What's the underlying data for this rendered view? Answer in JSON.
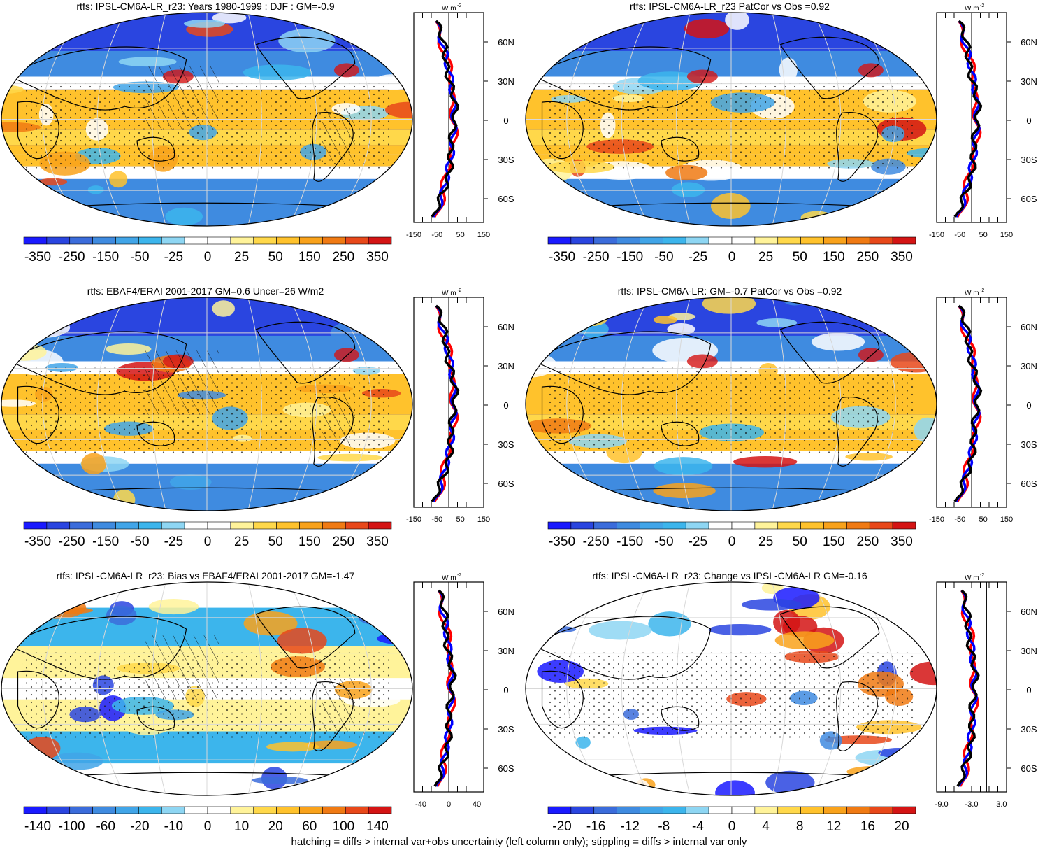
{
  "footnote": "hatching = diffs > internal var+obs uncertainty (left column only); stippling = diffs > internal var only",
  "colors": {
    "cold": [
      "#1a1aff",
      "#2a45e0",
      "#3b6cdb",
      "#3f8be0",
      "#41a5e8",
      "#3cb5ec",
      "#8ed6f3",
      "#ffffff"
    ],
    "warm": [
      "#ffffff",
      "#fff39a",
      "#ffd84a",
      "#ffc22c",
      "#f9a21b",
      "#f07a13",
      "#e8481a",
      "#d41414"
    ],
    "zonal_model": "#000000",
    "zonal_obs1": "#ff0000",
    "zonal_obs2": "#0000ff"
  },
  "chart_data": [
    {
      "type": "map",
      "title": "rtfs: IPSL-CM6A-LR_r23: Years 1980-1999 : DJF : GM=-0.9",
      "colorbar_labels": [
        "-350",
        "-250",
        "-150",
        "-50",
        "-25",
        "0",
        "25",
        "50",
        "150",
        "250",
        "350"
      ],
      "zonal_unit": "W m",
      "zonal_unit_sup": "-2",
      "zonal_xticks": [
        "-150",
        "-50",
        "50",
        "150"
      ],
      "zonal_xrange": [
        -150,
        150
      ],
      "lat_labels": [
        "60N",
        "30N",
        "0",
        "30S",
        "60S"
      ],
      "hatched": true
    },
    {
      "type": "map",
      "title": "rtfs: IPSL-CM6A-LR_r23 PatCor vs Obs =0.92",
      "colorbar_labels": [
        "-350",
        "-250",
        "-150",
        "-50",
        "-25",
        "0",
        "25",
        "50",
        "150",
        "250",
        "350"
      ],
      "zonal_unit": "W m",
      "zonal_unit_sup": "-2",
      "zonal_xticks": [
        "-150",
        "-50",
        "50",
        "150"
      ],
      "zonal_xrange": [
        -150,
        150
      ],
      "lat_labels": [
        "60N",
        "30N",
        "0",
        "30S",
        "60S"
      ],
      "hatched": false
    },
    {
      "type": "map",
      "title": "rtfs: EBAF4/ERAI 2001-2017 GM=0.6 Uncer=26 W/m2",
      "colorbar_labels": [
        "-350",
        "-250",
        "-150",
        "-50",
        "-25",
        "0",
        "25",
        "50",
        "150",
        "250",
        "350"
      ],
      "zonal_unit": "W m",
      "zonal_unit_sup": "-2",
      "zonal_xticks": [
        "-150",
        "-50",
        "50",
        "150"
      ],
      "zonal_xrange": [
        -150,
        150
      ],
      "lat_labels": [
        "60N",
        "30N",
        "0",
        "30S",
        "60S"
      ],
      "hatched": true
    },
    {
      "type": "map",
      "title": "rtfs: IPSL-CM6A-LR: GM=-0.7 PatCor vs Obs =0.92",
      "colorbar_labels": [
        "-350",
        "-250",
        "-150",
        "-50",
        "-25",
        "0",
        "25",
        "50",
        "150",
        "250",
        "350"
      ],
      "zonal_unit": "W m",
      "zonal_unit_sup": "-2",
      "zonal_xticks": [
        "-150",
        "-50",
        "50",
        "150"
      ],
      "zonal_xrange": [
        -150,
        150
      ],
      "lat_labels": [
        "60N",
        "30N",
        "0",
        "30S",
        "60S"
      ],
      "hatched": false
    },
    {
      "type": "map",
      "title": "rtfs: IPSL-CM6A-LR_r23: Bias vs EBAF4/ERAI 2001-2017 GM=-1.47",
      "colorbar_labels": [
        "-140",
        "-100",
        "-60",
        "-20",
        "-10",
        "0",
        "10",
        "20",
        "60",
        "100",
        "140"
      ],
      "zonal_unit": "W m",
      "zonal_unit_sup": "-2",
      "zonal_xticks": [
        "-40",
        "0",
        "40"
      ],
      "zonal_xrange": [
        -50,
        50
      ],
      "lat_labels": [
        "60N",
        "30N",
        "0",
        "30S",
        "60S"
      ],
      "hatched": true
    },
    {
      "type": "map",
      "title": "rtfs: IPSL-CM6A-LR_r23: Change vs IPSL-CM6A-LR GM=-0.16",
      "colorbar_labels": [
        "-20",
        "-16",
        "-12",
        "-8",
        "-4",
        "0",
        "4",
        "8",
        "12",
        "16",
        "20"
      ],
      "zonal_unit": "W m",
      "zonal_unit_sup": "-2",
      "zonal_xticks": [
        "-9.0",
        "-3.0",
        "3.0"
      ],
      "zonal_xrange": [
        -10,
        4
      ],
      "lat_labels": [
        "60N",
        "30N",
        "0",
        "30S",
        "60S"
      ],
      "hatched": false
    }
  ]
}
